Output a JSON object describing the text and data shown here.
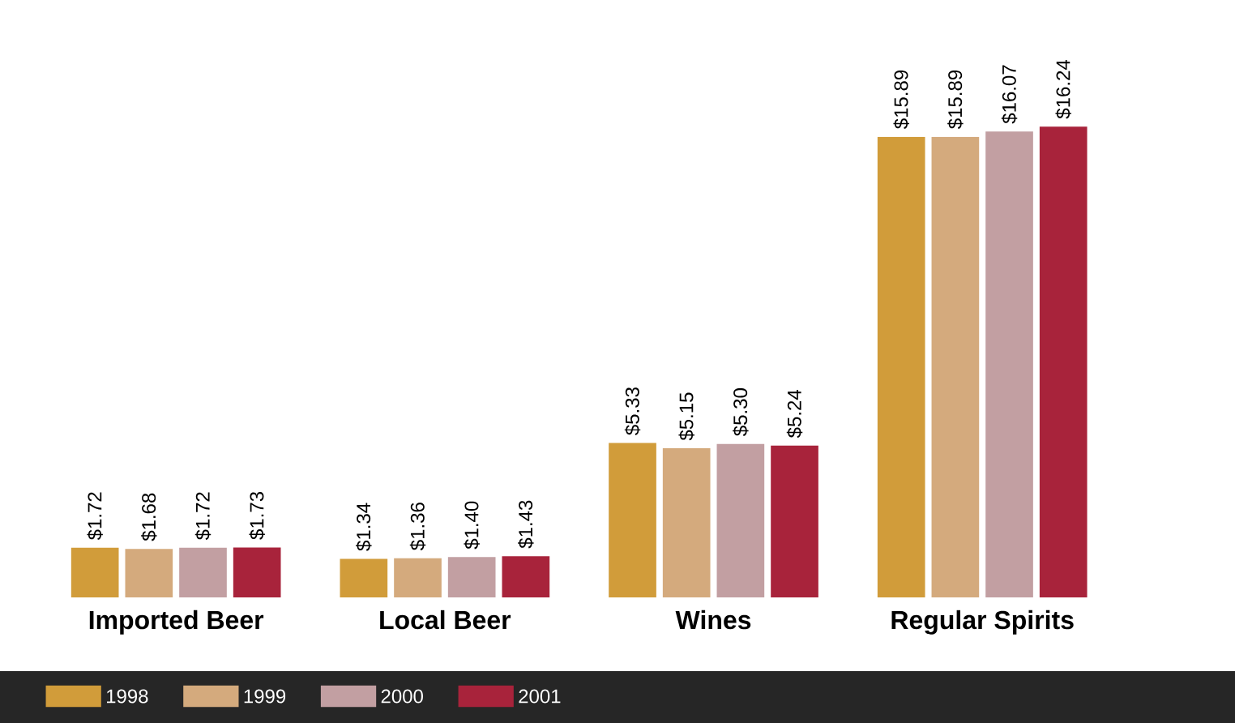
{
  "chart_data": {
    "type": "bar",
    "categories": [
      "Imported Beer",
      "Local Beer",
      "Wines",
      "Regular Spirits"
    ],
    "series": [
      {
        "name": "1998",
        "color": "#d19c3a",
        "values": [
          1.72,
          1.34,
          5.33,
          15.89
        ],
        "value_labels": [
          "$1.72",
          "$1.34",
          "$5.33",
          "$15.89"
        ]
      },
      {
        "name": "1999",
        "color": "#d4aa7d",
        "values": [
          1.68,
          1.36,
          5.15,
          15.89
        ],
        "value_labels": [
          "$1.68",
          "$1.36",
          "$5.15",
          "$15.89"
        ]
      },
      {
        "name": "2000",
        "color": "#c29fa2",
        "values": [
          1.72,
          1.4,
          5.3,
          16.07
        ],
        "value_labels": [
          "$1.72",
          "$1.40",
          "$5.30",
          "$16.07"
        ]
      },
      {
        "name": "2001",
        "color": "#a8233b",
        "values": [
          1.73,
          1.43,
          5.24,
          16.24
        ],
        "value_labels": [
          "$1.73",
          "$1.43",
          "$5.24",
          "$16.24"
        ]
      }
    ],
    "legend": "bottom left"
  }
}
